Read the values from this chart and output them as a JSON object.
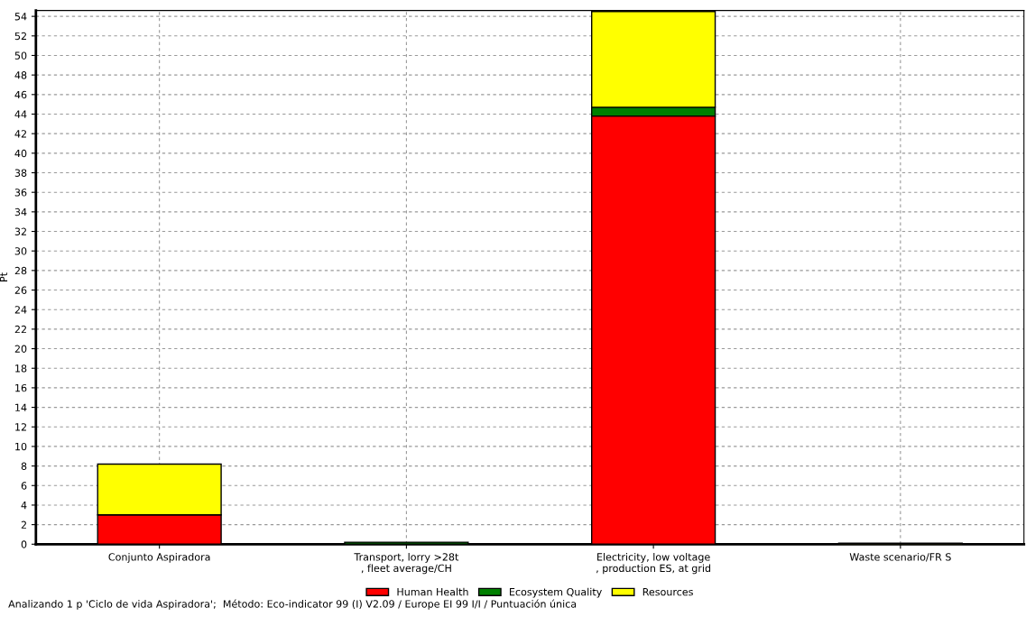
{
  "chart_data": {
    "type": "bar",
    "stacked": true,
    "ylabel": "Pt",
    "categories": [
      "Conjunto Aspiradora",
      "Transport, lorry >28t\n, fleet average/CH",
      "Electricity, low voltage\n, production ES, at grid",
      "Waste scenario/FR S"
    ],
    "series": [
      {
        "name": "Human Health",
        "color": "#ff0000",
        "values": [
          3.0,
          null,
          43.8,
          null
        ]
      },
      {
        "name": "Ecosystem Quality",
        "color": "#008000",
        "values": [
          null,
          0.2,
          0.9,
          null
        ]
      },
      {
        "name": "Resources",
        "color": "#ffff00",
        "values": [
          5.2,
          null,
          9.8,
          0.1
        ]
      }
    ],
    "ylim": [
      0,
      54.6
    ],
    "yticks": [
      0,
      2,
      4,
      6,
      8,
      10,
      12,
      14,
      16,
      18,
      20,
      22,
      24,
      26,
      28,
      30,
      32,
      34,
      36,
      38,
      40,
      42,
      44,
      46,
      48,
      50,
      52,
      54
    ],
    "grid": true,
    "legend": "bottom",
    "annotations": [
      "Analizando 1 p 'Ciclo de vida Aspiradora';  Método: Eco-indicator 99 (I) V2.09 / Europe EI 99 I/I / Puntuación única"
    ]
  }
}
